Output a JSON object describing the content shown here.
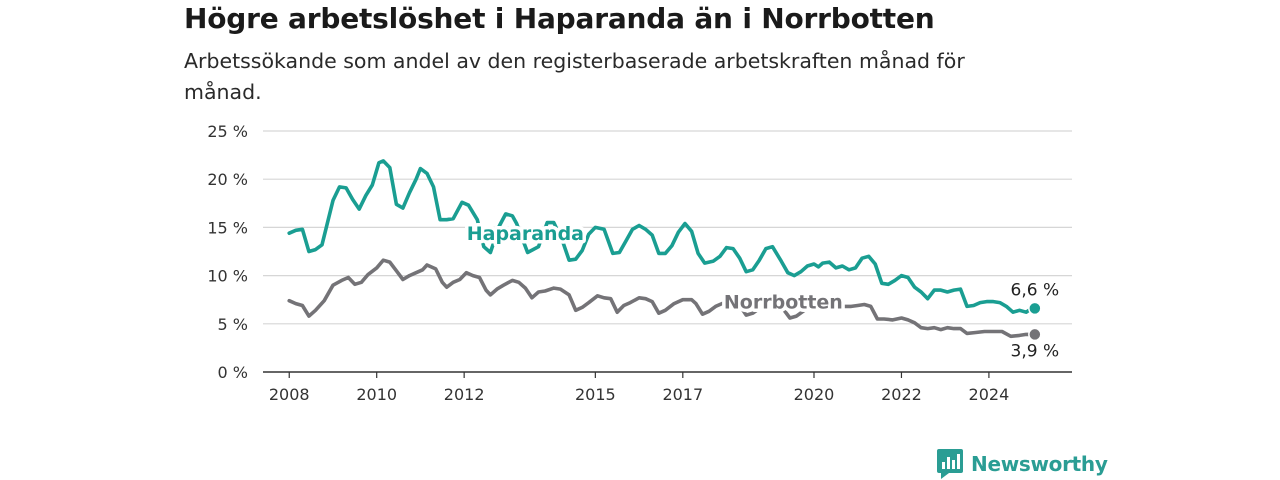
{
  "title": "Högre arbetslöshet i Haparanda än i Norrbotten",
  "subtitle": "Arbetssökande som andel av den registerbaserade arbetskraften månad för månad.",
  "brand": {
    "name": "Newsworthy",
    "icon": "newsworthy-chart-icon",
    "color": "#2a9d94"
  },
  "chart_data": {
    "type": "line",
    "title": "Högre arbetslöshet i Haparanda än i Norrbotten",
    "subtitle": "Arbetssökande som andel av den registerbaserade arbetskraften månad för månad.",
    "xlabel": "",
    "ylabel": "",
    "xlim": [
      2007.4,
      2025.9
    ],
    "ylim": [
      0,
      25
    ],
    "grid": true,
    "x_ticks": [
      2008,
      2010,
      2012,
      2015,
      2017,
      2020,
      2022,
      2024
    ],
    "y_ticks": [
      {
        "value": 0,
        "label": "0 %"
      },
      {
        "value": 5,
        "label": "5 %"
      },
      {
        "value": 10,
        "label": "10 %"
      },
      {
        "value": 15,
        "label": "15 %"
      },
      {
        "value": 20,
        "label": "20 %"
      },
      {
        "value": 25,
        "label": "25 %"
      }
    ],
    "series": [
      {
        "name": "Haparanda",
        "color": "#1a9e92",
        "end_label": "6,6 %",
        "points": [
          [
            2008.0,
            14.4
          ],
          [
            2008.15,
            14.7
          ],
          [
            2008.3,
            14.8
          ],
          [
            2008.45,
            12.5
          ],
          [
            2008.6,
            12.7
          ],
          [
            2008.75,
            13.2
          ],
          [
            2009.0,
            17.8
          ],
          [
            2009.15,
            19.2
          ],
          [
            2009.3,
            19.1
          ],
          [
            2009.45,
            17.9
          ],
          [
            2009.6,
            16.9
          ],
          [
            2009.75,
            18.3
          ],
          [
            2009.9,
            19.4
          ],
          [
            2010.05,
            21.7
          ],
          [
            2010.15,
            21.9
          ],
          [
            2010.3,
            21.2
          ],
          [
            2010.45,
            17.4
          ],
          [
            2010.6,
            17.0
          ],
          [
            2010.75,
            18.6
          ],
          [
            2010.9,
            20.0
          ],
          [
            2011.0,
            21.1
          ],
          [
            2011.15,
            20.6
          ],
          [
            2011.3,
            19.2
          ],
          [
            2011.45,
            15.8
          ],
          [
            2011.6,
            15.8
          ],
          [
            2011.75,
            15.9
          ],
          [
            2011.95,
            17.6
          ],
          [
            2012.1,
            17.3
          ],
          [
            2012.3,
            15.8
          ],
          [
            2012.45,
            13.0
          ],
          [
            2012.6,
            12.4
          ],
          [
            2012.8,
            15.1
          ],
          [
            2012.95,
            16.4
          ],
          [
            2013.1,
            16.2
          ],
          [
            2013.2,
            15.4
          ],
          [
            2013.45,
            12.4
          ],
          [
            2013.7,
            13.0
          ],
          [
            2013.9,
            15.5
          ],
          [
            2014.05,
            15.5
          ],
          [
            2014.25,
            13.6
          ],
          [
            2014.4,
            11.6
          ],
          [
            2014.55,
            11.7
          ],
          [
            2014.7,
            12.6
          ],
          [
            2014.85,
            14.3
          ],
          [
            2015.0,
            15.0
          ],
          [
            2015.2,
            14.8
          ],
          [
            2015.4,
            12.3
          ],
          [
            2015.55,
            12.4
          ],
          [
            2015.7,
            13.6
          ],
          [
            2015.85,
            14.8
          ],
          [
            2016.0,
            15.2
          ],
          [
            2016.15,
            14.8
          ],
          [
            2016.3,
            14.2
          ],
          [
            2016.45,
            12.3
          ],
          [
            2016.6,
            12.3
          ],
          [
            2016.75,
            13.1
          ],
          [
            2016.9,
            14.5
          ],
          [
            2017.05,
            15.4
          ],
          [
            2017.2,
            14.6
          ],
          [
            2017.35,
            12.3
          ],
          [
            2017.5,
            11.3
          ],
          [
            2017.7,
            11.5
          ],
          [
            2017.85,
            12.0
          ],
          [
            2018.0,
            12.9
          ],
          [
            2018.15,
            12.8
          ],
          [
            2018.3,
            11.8
          ],
          [
            2018.45,
            10.4
          ],
          [
            2018.6,
            10.6
          ],
          [
            2018.75,
            11.6
          ],
          [
            2018.9,
            12.8
          ],
          [
            2019.05,
            13.0
          ],
          [
            2019.25,
            11.5
          ],
          [
            2019.4,
            10.3
          ],
          [
            2019.55,
            10.0
          ],
          [
            2019.7,
            10.4
          ],
          [
            2019.85,
            11.0
          ],
          [
            2020.0,
            11.2
          ],
          [
            2020.1,
            10.9
          ],
          [
            2020.2,
            11.3
          ],
          [
            2020.35,
            11.4
          ],
          [
            2020.5,
            10.8
          ],
          [
            2020.65,
            11.0
          ],
          [
            2020.8,
            10.6
          ],
          [
            2020.95,
            10.8
          ],
          [
            2021.1,
            11.8
          ],
          [
            2021.25,
            12.0
          ],
          [
            2021.4,
            11.2
          ],
          [
            2021.55,
            9.2
          ],
          [
            2021.7,
            9.1
          ],
          [
            2021.85,
            9.5
          ],
          [
            2022.0,
            10.0
          ],
          [
            2022.15,
            9.8
          ],
          [
            2022.3,
            8.8
          ],
          [
            2022.45,
            8.3
          ],
          [
            2022.6,
            7.6
          ],
          [
            2022.75,
            8.5
          ],
          [
            2022.9,
            8.5
          ],
          [
            2023.05,
            8.3
          ],
          [
            2023.2,
            8.5
          ],
          [
            2023.35,
            8.6
          ],
          [
            2023.5,
            6.8
          ],
          [
            2023.65,
            6.9
          ],
          [
            2023.8,
            7.2
          ],
          [
            2023.95,
            7.3
          ],
          [
            2024.1,
            7.3
          ],
          [
            2024.25,
            7.2
          ],
          [
            2024.4,
            6.8
          ],
          [
            2024.55,
            6.2
          ],
          [
            2024.7,
            6.4
          ],
          [
            2024.85,
            6.2
          ],
          [
            2024.95,
            6.5
          ],
          [
            2025.05,
            6.6
          ]
        ]
      },
      {
        "name": "Norrbotten",
        "color": "#747377",
        "end_label": "3,9 %",
        "points": [
          [
            2008.0,
            7.4
          ],
          [
            2008.15,
            7.1
          ],
          [
            2008.3,
            6.9
          ],
          [
            2008.45,
            5.8
          ],
          [
            2008.6,
            6.4
          ],
          [
            2008.8,
            7.4
          ],
          [
            2009.0,
            9.0
          ],
          [
            2009.2,
            9.5
          ],
          [
            2009.35,
            9.8
          ],
          [
            2009.5,
            9.1
          ],
          [
            2009.65,
            9.3
          ],
          [
            2009.8,
            10.1
          ],
          [
            2010.0,
            10.8
          ],
          [
            2010.15,
            11.6
          ],
          [
            2010.3,
            11.4
          ],
          [
            2010.45,
            10.5
          ],
          [
            2010.6,
            9.6
          ],
          [
            2010.75,
            10.0
          ],
          [
            2010.9,
            10.3
          ],
          [
            2011.05,
            10.6
          ],
          [
            2011.15,
            11.1
          ],
          [
            2011.35,
            10.7
          ],
          [
            2011.5,
            9.3
          ],
          [
            2011.6,
            8.8
          ],
          [
            2011.75,
            9.3
          ],
          [
            2011.9,
            9.6
          ],
          [
            2012.05,
            10.3
          ],
          [
            2012.2,
            10.0
          ],
          [
            2012.35,
            9.8
          ],
          [
            2012.5,
            8.5
          ],
          [
            2012.6,
            8.0
          ],
          [
            2012.75,
            8.6
          ],
          [
            2012.9,
            9.0
          ],
          [
            2013.1,
            9.5
          ],
          [
            2013.25,
            9.3
          ],
          [
            2013.4,
            8.7
          ],
          [
            2013.55,
            7.7
          ],
          [
            2013.7,
            8.3
          ],
          [
            2013.85,
            8.4
          ],
          [
            2014.05,
            8.7
          ],
          [
            2014.2,
            8.6
          ],
          [
            2014.4,
            8.0
          ],
          [
            2014.55,
            6.4
          ],
          [
            2014.7,
            6.7
          ],
          [
            2014.85,
            7.2
          ],
          [
            2015.05,
            7.9
          ],
          [
            2015.2,
            7.7
          ],
          [
            2015.35,
            7.6
          ],
          [
            2015.5,
            6.2
          ],
          [
            2015.65,
            6.9
          ],
          [
            2015.8,
            7.2
          ],
          [
            2016.0,
            7.7
          ],
          [
            2016.15,
            7.6
          ],
          [
            2016.3,
            7.3
          ],
          [
            2016.45,
            6.1
          ],
          [
            2016.6,
            6.4
          ],
          [
            2016.8,
            7.1
          ],
          [
            2017.0,
            7.5
          ],
          [
            2017.2,
            7.5
          ],
          [
            2017.3,
            7.1
          ],
          [
            2017.45,
            6.0
          ],
          [
            2017.6,
            6.3
          ],
          [
            2017.75,
            6.8
          ],
          [
            2017.95,
            7.2
          ],
          [
            2018.1,
            7.3
          ],
          [
            2018.3,
            6.9
          ],
          [
            2018.45,
            5.9
          ],
          [
            2018.6,
            6.1
          ],
          [
            2018.75,
            6.6
          ],
          [
            2018.95,
            7.1
          ],
          [
            2019.1,
            7.1
          ],
          [
            2019.3,
            6.5
          ],
          [
            2019.45,
            5.6
          ],
          [
            2019.6,
            5.8
          ],
          [
            2019.75,
            6.3
          ],
          [
            2019.95,
            6.9
          ],
          [
            2020.1,
            7.3
          ],
          [
            2020.25,
            7.1
          ],
          [
            2020.4,
            7.0
          ],
          [
            2020.55,
            6.9
          ],
          [
            2020.7,
            6.8
          ],
          [
            2020.85,
            6.8
          ],
          [
            2021.0,
            6.9
          ],
          [
            2021.15,
            7.0
          ],
          [
            2021.3,
            6.8
          ],
          [
            2021.45,
            5.5
          ],
          [
            2021.6,
            5.5
          ],
          [
            2021.8,
            5.4
          ],
          [
            2022.0,
            5.6
          ],
          [
            2022.15,
            5.4
          ],
          [
            2022.3,
            5.1
          ],
          [
            2022.45,
            4.6
          ],
          [
            2022.6,
            4.5
          ],
          [
            2022.75,
            4.6
          ],
          [
            2022.9,
            4.4
          ],
          [
            2023.05,
            4.6
          ],
          [
            2023.2,
            4.5
          ],
          [
            2023.35,
            4.5
          ],
          [
            2023.5,
            4.0
          ],
          [
            2023.7,
            4.1
          ],
          [
            2023.9,
            4.2
          ],
          [
            2024.1,
            4.2
          ],
          [
            2024.3,
            4.2
          ],
          [
            2024.5,
            3.7
          ],
          [
            2024.7,
            3.8
          ],
          [
            2024.85,
            3.9
          ],
          [
            2025.05,
            3.9
          ]
        ]
      }
    ],
    "annotations": [
      {
        "text": "Haparanda",
        "x": 2013.4,
        "y": 13.7,
        "color": "#1a9e92"
      },
      {
        "text": "Norrbotten",
        "x": 2019.3,
        "y": 6.6,
        "color": "#747377"
      }
    ]
  }
}
